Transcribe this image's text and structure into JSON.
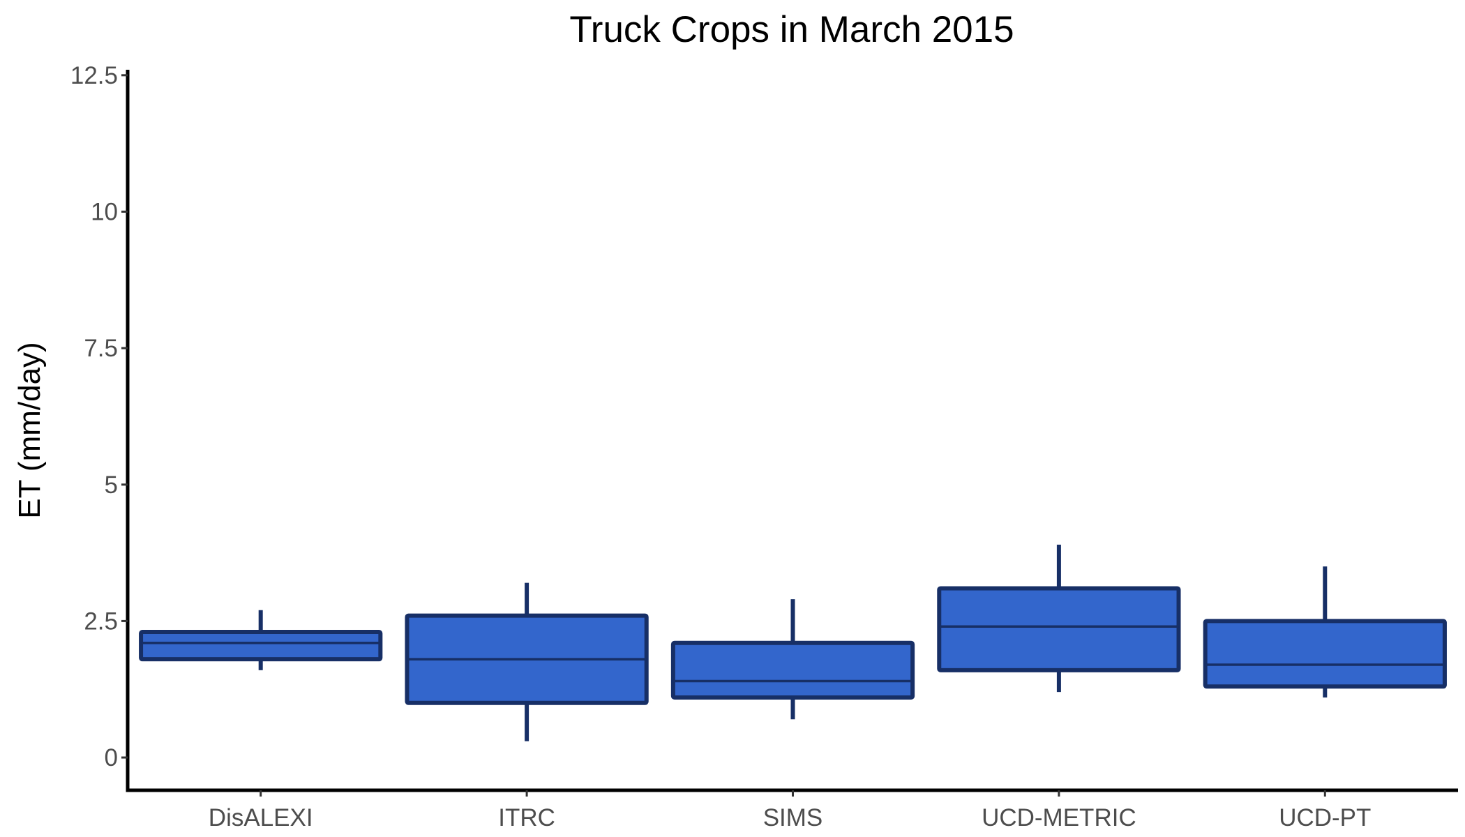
{
  "chart_data": {
    "type": "box",
    "title": "Truck Crops in March 2015",
    "xlabel": "",
    "ylabel": "ET (mm/day)",
    "ylim": [
      -0.6,
      12.6
    ],
    "yticks": [
      0,
      2.5,
      5,
      7.5,
      10,
      12.5
    ],
    "ytick_labels": [
      "0",
      "2.5",
      "5",
      "7.5",
      "10",
      "12.5"
    ],
    "categories": [
      "DisALEXI",
      "ITRC",
      "SIMS",
      "UCD-METRIC",
      "UCD-PT"
    ],
    "boxes": [
      {
        "category": "DisALEXI",
        "whisker_low": 1.6,
        "q1": 1.8,
        "median": 2.1,
        "q3": 2.3,
        "whisker_high": 2.7
      },
      {
        "category": "ITRC",
        "whisker_low": 0.3,
        "q1": 1.0,
        "median": 1.8,
        "q3": 2.6,
        "whisker_high": 3.2
      },
      {
        "category": "SIMS",
        "whisker_low": 0.7,
        "q1": 1.1,
        "median": 1.4,
        "q3": 2.1,
        "whisker_high": 2.9
      },
      {
        "category": "UCD-METRIC",
        "whisker_low": 1.2,
        "q1": 1.6,
        "median": 2.4,
        "q3": 3.1,
        "whisker_high": 3.9
      },
      {
        "category": "UCD-PT",
        "whisker_low": 1.1,
        "q1": 1.3,
        "median": 1.7,
        "q3": 2.5,
        "whisker_high": 3.5
      }
    ],
    "colors": {
      "box_fill": "#3366CC",
      "box_outline": "#172F66",
      "axis": "#000000"
    },
    "grid": false,
    "legend": "none"
  }
}
